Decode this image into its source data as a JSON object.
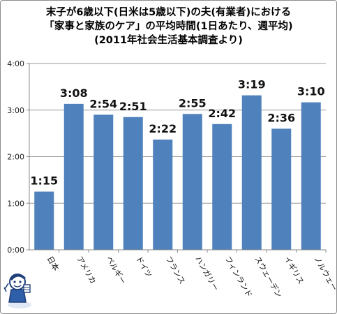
{
  "title": {
    "line1": "末子が6歳以下(日米は5歳以下)の夫(有業者)における",
    "line2": "「家事と家族のケア」の平均時間(1日あたり、週平均)",
    "line3": "(2011年社会生活基本調査より)"
  },
  "chart_data": {
    "type": "bar",
    "title": "末子が6歳以下(日米は5歳以下)の夫(有業者)における「家事と家族のケア」の平均時間(1日あたり、週平均)(2011年社会生活基本調査より)",
    "categories": [
      "日本",
      "アメリカ",
      "ベルギー",
      "ドイツ",
      "フランス",
      "ハンガリー",
      "フィンランド",
      "スウェーデン",
      "イギリス",
      "ノルウェー"
    ],
    "values": [
      75,
      188,
      174,
      171,
      142,
      175,
      162,
      199,
      156,
      190
    ],
    "data_labels": [
      "1:15",
      "3:08",
      "2:54",
      "2:51",
      "2:22",
      "2:55",
      "2:42",
      "3:19",
      "2:36",
      "3:10"
    ],
    "value_unit": "minutes",
    "y_ticks": [
      "0:00",
      "1:00",
      "2:00",
      "3:00",
      "4:00"
    ],
    "ylim": [
      0,
      240
    ],
    "grid": true,
    "bar_color": "#4f81bd"
  }
}
